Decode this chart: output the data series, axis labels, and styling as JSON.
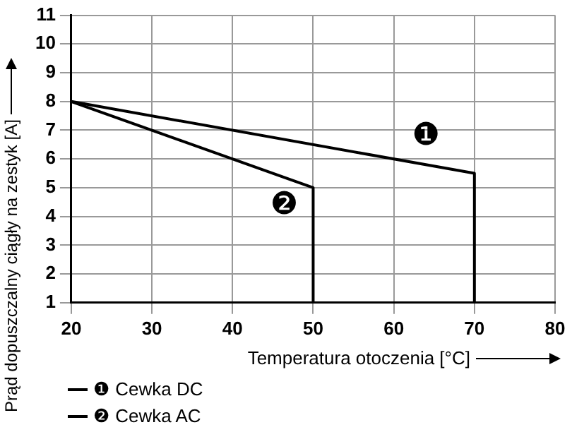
{
  "chart_data": {
    "type": "line",
    "xlabel": "Temperatura otoczenia [°C]",
    "ylabel": "Prąd dopuszczalny ciągły na zestyk [A]",
    "xlim": [
      20,
      80
    ],
    "xticks": [
      20,
      30,
      40,
      50,
      60,
      70,
      80
    ],
    "ylim": [
      1,
      11
    ],
    "yticks": [
      1,
      2,
      3,
      4,
      5,
      6,
      7,
      8,
      9,
      10,
      11
    ],
    "grid": true,
    "legend": "bottom left",
    "marker": "none",
    "line_style": "solid",
    "series": [
      {
        "name": "❶ Cewka DC",
        "color": "#000000",
        "x": [
          20,
          70,
          70
        ],
        "values": [
          8,
          5.5,
          1
        ]
      },
      {
        "name": "❷ Cewka AC",
        "color": "#000000",
        "x": [
          20,
          50,
          50
        ],
        "values": [
          8,
          5,
          1
        ]
      }
    ],
    "annotations": [
      "❶",
      "❷"
    ]
  }
}
